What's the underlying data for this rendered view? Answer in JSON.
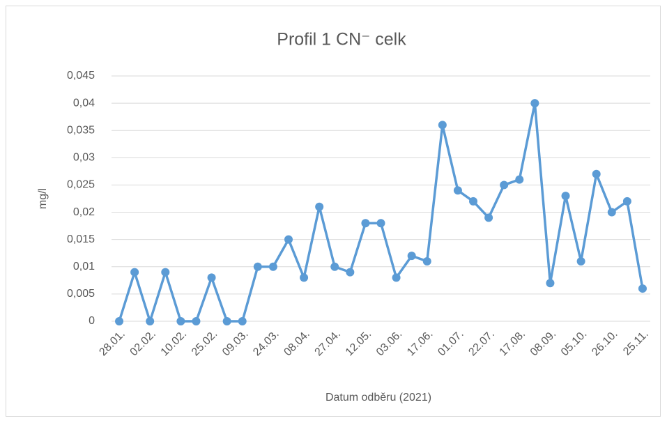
{
  "chart_data": {
    "type": "line",
    "title": "Profil 1 CN⁻ celk",
    "x_label": "Datum odběru (2021)",
    "y_label": "mg/l",
    "categories": [
      "28.01.",
      null,
      "02.02.",
      null,
      "10.02.",
      null,
      "25.02.",
      null,
      "09.03.",
      null,
      "24.03.",
      null,
      "08.04.",
      null,
      "27.04.",
      null,
      "12.05.",
      null,
      "03.06.",
      null,
      "17.06.",
      null,
      "01.07.",
      null,
      "22.07.",
      null,
      "17.08.",
      null,
      "08.09.",
      null,
      "05.10.",
      null,
      "26.10.",
      null,
      "25.11."
    ],
    "series": [
      {
        "name": "Profil 1",
        "color": "#5b9bd5",
        "values": [
          0,
          0.009,
          0,
          0.009,
          0,
          0,
          0.008,
          0,
          0,
          0.01,
          0.01,
          0.015,
          0.008,
          0.021,
          0.01,
          0.009,
          0.018,
          0.018,
          0.008,
          0.012,
          0.011,
          0.036,
          0.024,
          0.022,
          0.019,
          0.025,
          0.026,
          0.04,
          0.007,
          0.023,
          0.011,
          0.027,
          0.02,
          0.022,
          0.006
        ]
      }
    ],
    "ylim": [
      0,
      0.045
    ],
    "yticks": [
      0,
      {
        "value": 0.005,
        "label": "0,005"
      },
      {
        "value": 0.01,
        "label": "0,01"
      },
      {
        "value": 0.015,
        "label": "0,015"
      },
      {
        "value": 0.02,
        "label": "0,02"
      },
      {
        "value": 0.025,
        "label": "0,025"
      },
      {
        "value": 0.03,
        "label": "0,03"
      },
      {
        "value": 0.035,
        "label": "0,035"
      },
      {
        "value": 0.04,
        "label": "0,04"
      },
      {
        "value": 0.045,
        "label": "0,045"
      }
    ],
    "grid": true
  }
}
